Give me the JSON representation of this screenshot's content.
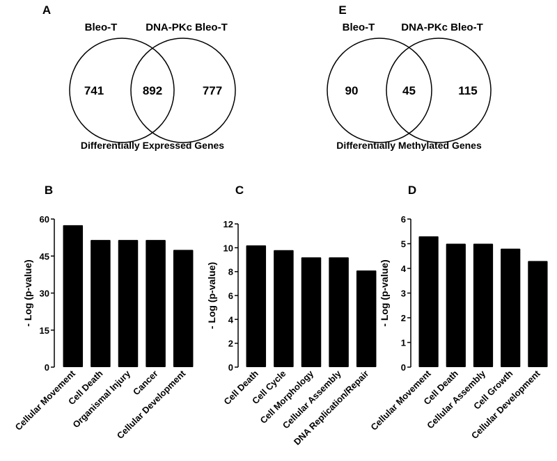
{
  "venns": [
    {
      "panel": "A",
      "left_label": "Bleo-T",
      "right_label": "DNA-PKc Bleo-T",
      "left_only": "741",
      "overlap": "892",
      "right_only": "777",
      "caption": "Differentially Expressed Genes"
    },
    {
      "panel": "E",
      "left_label": "Bleo-T",
      "right_label": "DNA-PKc Bleo-T",
      "left_only": "90",
      "overlap": "45",
      "right_only": "115",
      "caption": "Differentially Methylated Genes"
    }
  ],
  "chart_data": [
    {
      "panel": "B",
      "type": "bar",
      "ylabel": "- Log (p-value)",
      "ylim": [
        0,
        60
      ],
      "yticks": [
        0,
        15,
        30,
        45,
        60
      ],
      "categories": [
        "Cellular Movement",
        "Cell Death",
        "Organismal Injury",
        "Cancer",
        "Cellular Development"
      ],
      "values": [
        57.5,
        51.5,
        51.5,
        51.5,
        47.5
      ]
    },
    {
      "panel": "C",
      "type": "bar",
      "ylabel": "- Log (p-value)",
      "ylim": [
        0,
        12
      ],
      "yticks": [
        0,
        2,
        4,
        6,
        8,
        10,
        12
      ],
      "categories": [
        "Cell Death",
        "Cell Cycle",
        "Cell Morphology",
        "Cellular Assembly",
        "DNA Replication/Repair"
      ],
      "values": [
        10.2,
        9.8,
        9.2,
        9.2,
        8.1
      ]
    },
    {
      "panel": "D",
      "type": "bar",
      "ylabel": "- Log (p-value)",
      "ylim": [
        0,
        6
      ],
      "yticks": [
        0,
        1,
        2,
        3,
        4,
        5,
        6
      ],
      "categories": [
        "Cellular Movement",
        "Cell Death",
        "Cellular Assembly",
        "Cell Growth",
        "Cellular Development"
      ],
      "values": [
        5.3,
        5.0,
        5.0,
        4.8,
        4.3
      ]
    }
  ]
}
